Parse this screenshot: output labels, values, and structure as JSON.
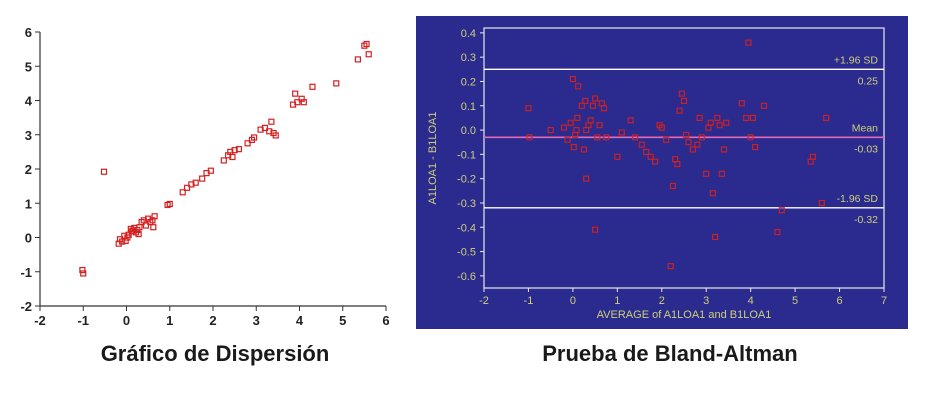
{
  "captions": {
    "scatter": "Gráfico de Dispersión",
    "bland_altman": "Prueba de Bland-Altman"
  },
  "colors": {
    "marker": "#d42020",
    "ba_background": "#2b2a8e",
    "ba_axis_text": "#cfcf7a",
    "ba_line": "#ffffff",
    "ba_mean_line": "#e36bb5"
  },
  "chart_data": [
    {
      "type": "scatter",
      "title": "",
      "xlabel": "",
      "ylabel": "",
      "xlim": [
        -2,
        6
      ],
      "ylim": [
        -2,
        6
      ],
      "xticks": [
        "-2",
        "-1",
        "0",
        "1",
        "2",
        "3",
        "4",
        "5",
        "6"
      ],
      "yticks": [
        "-2",
        "-1",
        "0",
        "1",
        "2",
        "3",
        "4",
        "5",
        "6"
      ],
      "grid": false,
      "points": [
        [
          -1.02,
          -0.95
        ],
        [
          -1.0,
          -1.05
        ],
        [
          -0.52,
          1.92
        ],
        [
          -0.18,
          -0.18
        ],
        [
          -0.15,
          -0.05
        ],
        [
          -0.1,
          -0.12
        ],
        [
          -0.05,
          0.05
        ],
        [
          -0.02,
          -0.1
        ],
        [
          0.02,
          0.0
        ],
        [
          0.05,
          0.08
        ],
        [
          0.1,
          0.25
        ],
        [
          0.12,
          0.18
        ],
        [
          0.15,
          0.2
        ],
        [
          0.18,
          0.28
        ],
        [
          0.22,
          0.15
        ],
        [
          0.25,
          0.22
        ],
        [
          0.28,
          0.1
        ],
        [
          0.3,
          0.3
        ],
        [
          0.35,
          0.45
        ],
        [
          0.4,
          0.5
        ],
        [
          0.45,
          0.35
        ],
        [
          0.5,
          0.55
        ],
        [
          0.55,
          0.45
        ],
        [
          0.6,
          0.5
        ],
        [
          0.62,
          0.3
        ],
        [
          0.65,
          0.62
        ],
        [
          0.95,
          0.95
        ],
        [
          1.0,
          0.98
        ],
        [
          1.3,
          1.32
        ],
        [
          1.4,
          1.45
        ],
        [
          1.5,
          1.55
        ],
        [
          1.6,
          1.6
        ],
        [
          1.75,
          1.72
        ],
        [
          1.85,
          1.88
        ],
        [
          1.95,
          1.95
        ],
        [
          2.25,
          2.25
        ],
        [
          2.35,
          2.4
        ],
        [
          2.4,
          2.5
        ],
        [
          2.45,
          2.35
        ],
        [
          2.5,
          2.55
        ],
        [
          2.6,
          2.58
        ],
        [
          2.8,
          2.75
        ],
        [
          2.9,
          2.85
        ],
        [
          2.95,
          2.92
        ],
        [
          3.1,
          3.15
        ],
        [
          3.2,
          3.2
        ],
        [
          3.3,
          3.1
        ],
        [
          3.35,
          3.38
        ],
        [
          3.4,
          3.05
        ],
        [
          3.45,
          2.98
        ],
        [
          3.85,
          3.88
        ],
        [
          3.9,
          4.2
        ],
        [
          3.95,
          3.95
        ],
        [
          4.05,
          4.05
        ],
        [
          4.1,
          3.95
        ],
        [
          4.3,
          4.4
        ],
        [
          4.85,
          4.5
        ],
        [
          5.35,
          5.2
        ],
        [
          5.5,
          5.6
        ],
        [
          5.55,
          5.65
        ],
        [
          5.6,
          5.35
        ]
      ]
    },
    {
      "type": "scatter",
      "title": "",
      "xlabel": "AVERAGE of A1LOA1 and B1LOA1",
      "ylabel": "A1LOA1 - B1LOA1",
      "xlim": [
        -2,
        7
      ],
      "ylim": [
        -0.65,
        0.42
      ],
      "xticks": [
        "-2",
        "-1",
        "0",
        "1",
        "2",
        "3",
        "4",
        "5",
        "6",
        "7"
      ],
      "yticks": [
        "0.4",
        "0.3",
        "0.2",
        "0.1",
        "0.0",
        "-0.1",
        "-0.2",
        "-0.3",
        "-0.4",
        "-0.5",
        "-0.6"
      ],
      "grid": false,
      "reference_lines": [
        {
          "label": "+1.96 SD",
          "value": 0.25,
          "value_label": "0.25"
        },
        {
          "label": "Mean",
          "value": -0.03,
          "value_label": "-0.03"
        },
        {
          "label": "-1.96 SD",
          "value": -0.32,
          "value_label": "-0.32"
        }
      ],
      "points": [
        [
          -1.0,
          0.09
        ],
        [
          -0.98,
          -0.03
        ],
        [
          -0.5,
          0.0
        ],
        [
          -0.2,
          0.01
        ],
        [
          -0.12,
          -0.04
        ],
        [
          -0.05,
          0.03
        ],
        [
          0.0,
          0.21
        ],
        [
          0.02,
          -0.07
        ],
        [
          0.05,
          -0.02
        ],
        [
          0.08,
          0.0
        ],
        [
          0.1,
          0.05
        ],
        [
          0.12,
          0.18
        ],
        [
          0.2,
          0.1
        ],
        [
          0.25,
          -0.08
        ],
        [
          0.28,
          0.12
        ],
        [
          0.3,
          -0.2
        ],
        [
          0.3,
          0.0
        ],
        [
          0.35,
          0.02
        ],
        [
          0.4,
          0.04
        ],
        [
          0.45,
          0.1
        ],
        [
          0.5,
          0.13
        ],
        [
          0.5,
          -0.41
        ],
        [
          0.55,
          -0.03
        ],
        [
          0.6,
          0.02
        ],
        [
          0.65,
          0.11
        ],
        [
          0.7,
          0.09
        ],
        [
          0.75,
          -0.03
        ],
        [
          1.0,
          -0.11
        ],
        [
          1.1,
          -0.01
        ],
        [
          1.3,
          0.04
        ],
        [
          1.4,
          -0.03
        ],
        [
          1.55,
          -0.06
        ],
        [
          1.65,
          -0.09
        ],
        [
          1.75,
          -0.11
        ],
        [
          1.85,
          -0.13
        ],
        [
          1.95,
          0.02
        ],
        [
          2.0,
          0.01
        ],
        [
          2.1,
          -0.04
        ],
        [
          2.2,
          -0.56
        ],
        [
          2.25,
          -0.23
        ],
        [
          2.3,
          -0.12
        ],
        [
          2.35,
          -0.14
        ],
        [
          2.4,
          0.08
        ],
        [
          2.45,
          0.15
        ],
        [
          2.5,
          0.12
        ],
        [
          2.55,
          -0.02
        ],
        [
          2.6,
          -0.05
        ],
        [
          2.7,
          -0.08
        ],
        [
          2.8,
          -0.06
        ],
        [
          2.85,
          0.05
        ],
        [
          2.9,
          -0.03
        ],
        [
          3.0,
          -0.18
        ],
        [
          3.05,
          0.01
        ],
        [
          3.1,
          0.03
        ],
        [
          3.15,
          -0.26
        ],
        [
          3.2,
          -0.44
        ],
        [
          3.25,
          0.05
        ],
        [
          3.3,
          0.02
        ],
        [
          3.35,
          -0.18
        ],
        [
          3.4,
          -0.08
        ],
        [
          3.45,
          0.03
        ],
        [
          3.8,
          0.11
        ],
        [
          3.9,
          0.05
        ],
        [
          3.95,
          0.36
        ],
        [
          4.0,
          -0.03
        ],
        [
          4.05,
          0.05
        ],
        [
          4.1,
          -0.07
        ],
        [
          4.3,
          0.1
        ],
        [
          4.6,
          -0.42
        ],
        [
          4.7,
          -0.33
        ],
        [
          5.35,
          -0.13
        ],
        [
          5.4,
          -0.11
        ],
        [
          5.6,
          -0.3
        ],
        [
          5.7,
          0.05
        ]
      ]
    }
  ]
}
